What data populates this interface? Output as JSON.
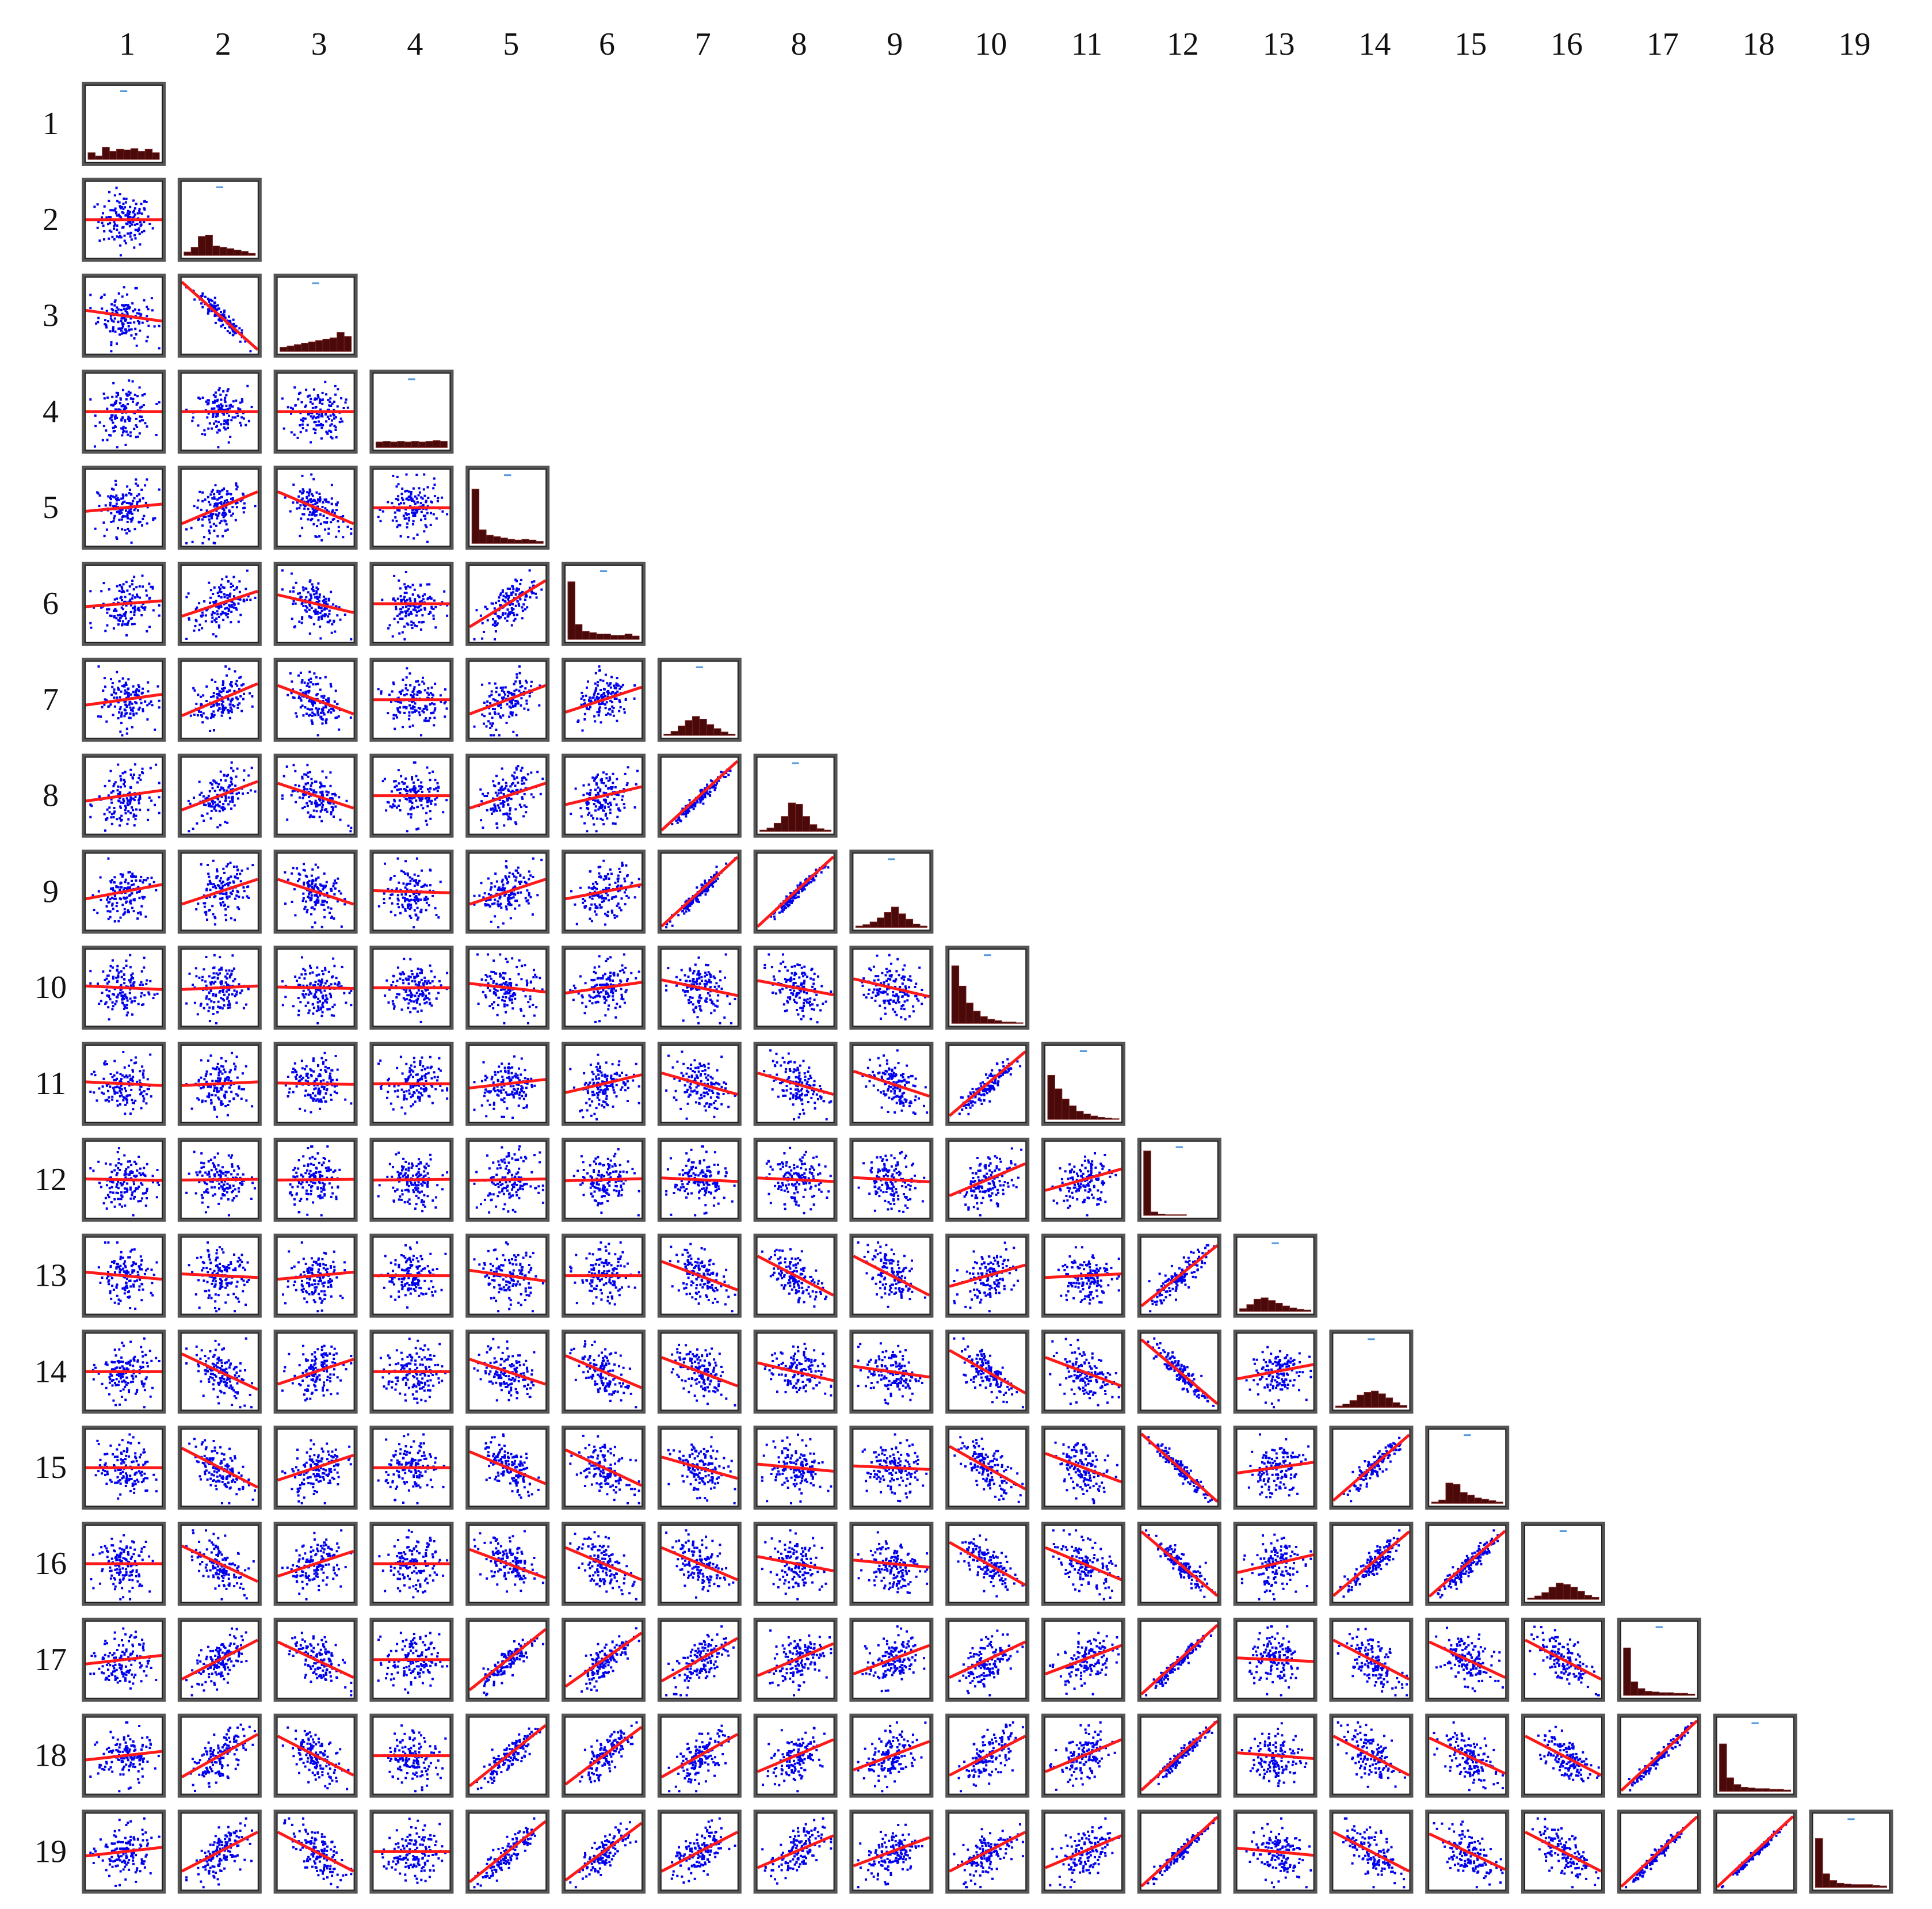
{
  "chart_data": {
    "type": "scatter-matrix",
    "title": "",
    "variables": [
      "1",
      "2",
      "3",
      "4",
      "5",
      "6",
      "7",
      "8",
      "9",
      "10",
      "11",
      "12",
      "13",
      "14",
      "15",
      "16",
      "17",
      "18",
      "19"
    ],
    "col_labels": [
      "1",
      "2",
      "3",
      "4",
      "5",
      "6",
      "7",
      "8",
      "9",
      "10",
      "11",
      "12",
      "13",
      "14",
      "15",
      "16",
      "17",
      "18",
      "19"
    ],
    "row_labels": [
      "1",
      "2",
      "3",
      "4",
      "5",
      "6",
      "7",
      "8",
      "9",
      "10",
      "11",
      "12",
      "13",
      "14",
      "15",
      "16",
      "17",
      "18",
      "19"
    ],
    "layout": "lower-triangle",
    "diagonal": "histogram",
    "off_diagonal": "scatter with linear fit",
    "colors": {
      "points": "#0000ee",
      "fit_line": "#ff1a1a",
      "histogram": "#4a0a0a",
      "frame": "#555555"
    },
    "histogram_shapes": {
      "1": [
        0.1,
        0.05,
        0.18,
        0.12,
        0.15,
        0.14,
        0.16,
        0.12,
        0.15,
        0.1
      ],
      "2": [
        0.05,
        0.12,
        0.28,
        0.3,
        0.14,
        0.12,
        0.1,
        0.08,
        0.06,
        0.03
      ],
      "3": [
        0.06,
        0.08,
        0.1,
        0.12,
        0.14,
        0.16,
        0.18,
        0.2,
        0.28,
        0.22
      ],
      "4": [
        0.08,
        0.09,
        0.08,
        0.09,
        0.08,
        0.09,
        0.08,
        0.09,
        0.1,
        0.09
      ],
      "5": [
        0.8,
        0.2,
        0.12,
        0.1,
        0.08,
        0.06,
        0.05,
        0.06,
        0.05,
        0.03
      ],
      "6": [
        0.85,
        0.22,
        0.12,
        0.1,
        0.08,
        0.08,
        0.06,
        0.06,
        0.08,
        0.05
      ],
      "7": [
        0.02,
        0.06,
        0.14,
        0.22,
        0.28,
        0.24,
        0.16,
        0.1,
        0.05,
        0.02
      ],
      "8": [
        0.02,
        0.05,
        0.12,
        0.22,
        0.42,
        0.4,
        0.22,
        0.1,
        0.04,
        0.02
      ],
      "9": [
        0.02,
        0.04,
        0.08,
        0.14,
        0.22,
        0.3,
        0.2,
        0.12,
        0.05,
        0.02
      ],
      "10": [
        0.85,
        0.55,
        0.3,
        0.18,
        0.1,
        0.06,
        0.04,
        0.02,
        0.02,
        0.01
      ],
      "11": [
        0.65,
        0.45,
        0.3,
        0.2,
        0.12,
        0.08,
        0.05,
        0.03,
        0.02,
        0.01
      ],
      "12": [
        0.95,
        0.05,
        0.02,
        0.01,
        0.01,
        0.01,
        0.0,
        0.0,
        0.0,
        0.0
      ],
      "13": [
        0.04,
        0.1,
        0.18,
        0.2,
        0.16,
        0.12,
        0.08,
        0.05,
        0.03,
        0.02
      ],
      "14": [
        0.02,
        0.05,
        0.1,
        0.18,
        0.22,
        0.24,
        0.2,
        0.14,
        0.07,
        0.03
      ],
      "15": [
        0.02,
        0.05,
        0.3,
        0.28,
        0.16,
        0.12,
        0.08,
        0.06,
        0.04,
        0.02
      ],
      "16": [
        0.02,
        0.05,
        0.1,
        0.18,
        0.24,
        0.22,
        0.18,
        0.12,
        0.06,
        0.03
      ],
      "17": [
        0.7,
        0.2,
        0.1,
        0.06,
        0.05,
        0.04,
        0.04,
        0.03,
        0.03,
        0.02
      ],
      "18": [
        0.7,
        0.2,
        0.1,
        0.06,
        0.05,
        0.04,
        0.04,
        0.03,
        0.03,
        0.02
      ],
      "19": [
        0.72,
        0.2,
        0.1,
        0.06,
        0.05,
        0.04,
        0.04,
        0.04,
        0.03,
        0.02
      ]
    },
    "correlations": [
      [
        1
      ],
      [
        0.0,
        1
      ],
      [
        -0.15,
        -0.95,
        1
      ],
      [
        0.0,
        0.0,
        0.0,
        1
      ],
      [
        0.1,
        0.45,
        -0.45,
        0.0,
        1
      ],
      [
        0.08,
        0.35,
        -0.25,
        0.0,
        0.65,
        1
      ],
      [
        0.15,
        0.45,
        -0.4,
        0.0,
        0.4,
        0.35,
        1
      ],
      [
        0.15,
        0.4,
        -0.35,
        0.0,
        0.35,
        0.25,
        0.97,
        1
      ],
      [
        0.2,
        0.35,
        -0.35,
        -0.03,
        0.35,
        0.2,
        0.97,
        0.98,
        1
      ],
      [
        -0.05,
        0.05,
        -0.02,
        0.0,
        -0.12,
        0.15,
        -0.22,
        -0.2,
        -0.25,
        1
      ],
      [
        -0.05,
        0.05,
        -0.02,
        0.0,
        0.12,
        0.25,
        -0.3,
        -0.3,
        -0.35,
        0.9,
        1
      ],
      [
        -0.02,
        0.01,
        0.01,
        0.01,
        0.02,
        0.03,
        -0.05,
        -0.05,
        -0.06,
        0.45,
        0.3,
        1
      ],
      [
        -0.1,
        -0.05,
        0.1,
        0.0,
        -0.15,
        0.0,
        -0.4,
        -0.55,
        -0.55,
        0.3,
        0.05,
        0.85,
        1
      ],
      [
        0.0,
        -0.5,
        0.35,
        0.0,
        -0.35,
        -0.45,
        -0.4,
        -0.25,
        -0.15,
        -0.6,
        -0.4,
        -0.9,
        0.2,
        1
      ],
      [
        0.0,
        -0.55,
        0.35,
        0.0,
        -0.45,
        -0.5,
        -0.3,
        -0.1,
        -0.05,
        -0.6,
        -0.4,
        -0.95,
        0.15,
        0.92,
        1
      ],
      [
        0.0,
        -0.5,
        0.35,
        0.0,
        -0.4,
        -0.45,
        -0.45,
        -0.2,
        -0.1,
        -0.6,
        -0.45,
        -0.9,
        0.25,
        0.9,
        0.92,
        1
      ],
      [
        0.12,
        0.55,
        -0.5,
        0.0,
        0.85,
        0.75,
        0.6,
        0.45,
        0.4,
        0.5,
        0.4,
        0.97,
        -0.05,
        -0.55,
        -0.5,
        -0.55,
        1
      ],
      [
        0.12,
        0.6,
        -0.55,
        0.0,
        0.85,
        0.8,
        0.6,
        0.45,
        0.4,
        0.55,
        0.45,
        0.97,
        -0.08,
        -0.55,
        -0.5,
        -0.55,
        0.98,
        1
      ],
      [
        0.12,
        0.55,
        -0.55,
        0.0,
        0.85,
        0.8,
        0.55,
        0.45,
        0.4,
        0.55,
        0.45,
        0.97,
        -0.1,
        -0.55,
        -0.5,
        -0.55,
        0.98,
        0.99,
        1
      ]
    ]
  }
}
